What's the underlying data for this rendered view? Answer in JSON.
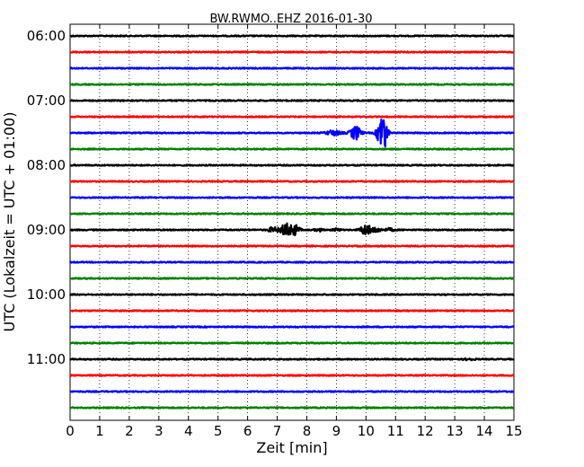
{
  "chart_data": {
    "type": "line",
    "title": "BW.RWMO..EHZ 2016-01-30",
    "xlabel": "Zeit  [min]",
    "ylabel": "UTC (Lokalzeit = UTC + 01:00)",
    "xlim": [
      0,
      15
    ],
    "x_ticks": [
      "0",
      "1",
      "2",
      "3",
      "4",
      "5",
      "6",
      "7",
      "8",
      "9",
      "10",
      "11",
      "12",
      "13",
      "14",
      "15"
    ],
    "y_tick_labels": [
      "06:00",
      "07:00",
      "08:00",
      "09:00",
      "10:00",
      "11:00"
    ],
    "grid": "vertical-dotted",
    "trace_start": "06:00",
    "trace_interval_minutes": 15,
    "trace_colors": [
      "#000000",
      "#ff0000",
      "#0000ff",
      "#008000"
    ],
    "trace_count": 24,
    "events": [
      {
        "trace_time": "07:30",
        "minute": 8.9,
        "amplitude": 0.25,
        "duration": 0.5
      },
      {
        "trace_time": "07:30",
        "minute": 9.65,
        "amplitude": 0.7,
        "duration": 0.35
      },
      {
        "trace_time": "07:30",
        "minute": 10.55,
        "amplitude": 2.2,
        "duration": 0.3
      },
      {
        "trace_time": "09:00",
        "minute": 6.85,
        "amplitude": 0.25,
        "duration": 0.3
      },
      {
        "trace_time": "09:00",
        "minute": 7.3,
        "amplitude": 0.65,
        "duration": 0.4
      },
      {
        "trace_time": "09:00",
        "minute": 7.6,
        "amplitude": 0.5,
        "duration": 0.3
      },
      {
        "trace_time": "09:00",
        "minute": 8.4,
        "amplitude": 0.15,
        "duration": 0.25
      },
      {
        "trace_time": "09:00",
        "minute": 9.0,
        "amplitude": 0.15,
        "duration": 0.25
      },
      {
        "trace_time": "09:00",
        "minute": 10.0,
        "amplitude": 0.6,
        "duration": 0.35
      },
      {
        "trace_time": "09:00",
        "minute": 10.35,
        "amplitude": 0.25,
        "duration": 0.3
      },
      {
        "trace_time": "09:00",
        "minute": 10.8,
        "amplitude": 0.15,
        "duration": 0.3
      },
      {
        "trace_time": "11:00",
        "minute": 13.5,
        "amplitude": 0.12,
        "duration": 0.3
      }
    ]
  }
}
